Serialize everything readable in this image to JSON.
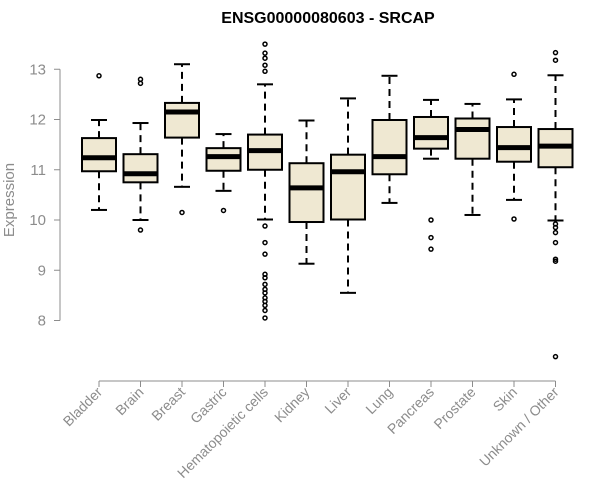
{
  "chart_data": {
    "type": "boxplot",
    "title": "ENSG00000080603 - SRCAP",
    "xlabel": "",
    "ylabel": "Expression",
    "ylim": [
      7.0,
      13.6
    ],
    "yticks": [
      8,
      9,
      10,
      11,
      12,
      13
    ],
    "colors": {
      "box_fill": "#efe8d2",
      "stroke": "#000000",
      "axis": "#8c8c8c"
    },
    "categories": [
      "Bladder",
      "Brain",
      "Breast",
      "Gastric",
      "Hematopoietic cells",
      "Kidney",
      "Liver",
      "Lung",
      "Pancreas",
      "Prostate",
      "Skin",
      "Unknown / Other"
    ],
    "boxes": [
      {
        "label": "Bladder",
        "whisker_low": 10.2,
        "q1": 10.97,
        "median": 11.24,
        "q3": 11.63,
        "whisker_high": 11.99,
        "outliers": [
          12.87
        ]
      },
      {
        "label": "Brain",
        "whisker_low": 10.0,
        "q1": 10.75,
        "median": 10.92,
        "q3": 11.31,
        "whisker_high": 11.93,
        "outliers": [
          9.8,
          12.72,
          12.8
        ]
      },
      {
        "label": "Breast",
        "whisker_low": 10.66,
        "q1": 11.64,
        "median": 12.15,
        "q3": 12.33,
        "whisker_high": 13.1,
        "outliers": [
          10.15
        ]
      },
      {
        "label": "Gastric",
        "whisker_low": 10.58,
        "q1": 10.98,
        "median": 11.26,
        "q3": 11.43,
        "whisker_high": 11.71,
        "outliers": [
          10.19
        ]
      },
      {
        "label": "Hematopoietic cells",
        "whisker_low": 10.01,
        "q1": 11.0,
        "median": 11.38,
        "q3": 11.7,
        "whisker_high": 12.7,
        "outliers": [
          8.05,
          8.2,
          8.3,
          8.38,
          8.45,
          8.55,
          8.62,
          8.72,
          8.85,
          8.92,
          9.32,
          9.55,
          9.88,
          12.96,
          13.08,
          13.22,
          13.32,
          13.5
        ]
      },
      {
        "label": "Kidney",
        "whisker_low": 9.13,
        "q1": 9.96,
        "median": 10.64,
        "q3": 11.13,
        "whisker_high": 11.98,
        "outliers": []
      },
      {
        "label": "Liver",
        "whisker_low": 8.55,
        "q1": 10.01,
        "median": 10.96,
        "q3": 11.3,
        "whisker_high": 12.42,
        "outliers": []
      },
      {
        "label": "Lung",
        "whisker_low": 10.34,
        "q1": 10.91,
        "median": 11.26,
        "q3": 11.99,
        "whisker_high": 12.87,
        "outliers": []
      },
      {
        "label": "Pancreas",
        "whisker_low": 11.22,
        "q1": 11.42,
        "median": 11.64,
        "q3": 12.05,
        "whisker_high": 12.39,
        "outliers": [
          9.42,
          9.65,
          10.0
        ]
      },
      {
        "label": "Prostate",
        "whisker_low": 10.1,
        "q1": 11.22,
        "median": 11.8,
        "q3": 12.02,
        "whisker_high": 12.31,
        "outliers": []
      },
      {
        "label": "Skin",
        "whisker_low": 10.4,
        "q1": 11.16,
        "median": 11.44,
        "q3": 11.85,
        "whisker_high": 12.4,
        "outliers": [
          10.02,
          12.9
        ]
      },
      {
        "label": "Unknown / Other",
        "whisker_low": 9.99,
        "q1": 11.05,
        "median": 11.47,
        "q3": 11.81,
        "whisker_high": 12.88,
        "outliers": [
          7.28,
          9.18,
          9.22,
          9.55,
          9.75,
          9.85,
          9.92,
          13.18,
          13.33
        ]
      }
    ]
  }
}
